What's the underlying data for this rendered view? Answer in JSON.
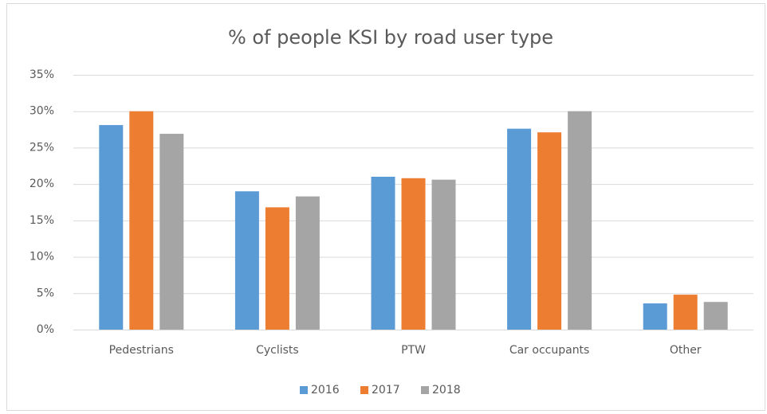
{
  "chart_data": {
    "type": "bar",
    "title": "% of people KSI by road user type",
    "categories": [
      "Pedestrians",
      "Cyclists",
      "PTW",
      "Car occupants",
      "Other"
    ],
    "series": [
      {
        "name": "2016",
        "color": "#5b9bd5",
        "values": [
          28.1,
          19.0,
          21.0,
          27.6,
          3.6
        ]
      },
      {
        "name": "2017",
        "color": "#ed7d31",
        "values": [
          30.0,
          16.8,
          20.8,
          27.1,
          4.8
        ]
      },
      {
        "name": "2018",
        "color": "#a5a5a5",
        "values": [
          26.9,
          18.3,
          20.6,
          30.0,
          3.8
        ]
      }
    ],
    "ylim": [
      0,
      35
    ],
    "yticks": [
      {
        "value": 0,
        "label": "0%"
      },
      {
        "value": 5,
        "label": "5%"
      },
      {
        "value": 10,
        "label": "10%"
      },
      {
        "value": 15,
        "label": "15%"
      },
      {
        "value": 20,
        "label": "20%"
      },
      {
        "value": 25,
        "label": "25%"
      },
      {
        "value": 30,
        "label": "30%"
      },
      {
        "value": 35,
        "label": "35%"
      }
    ],
    "grid": true,
    "legend": "bottom"
  }
}
